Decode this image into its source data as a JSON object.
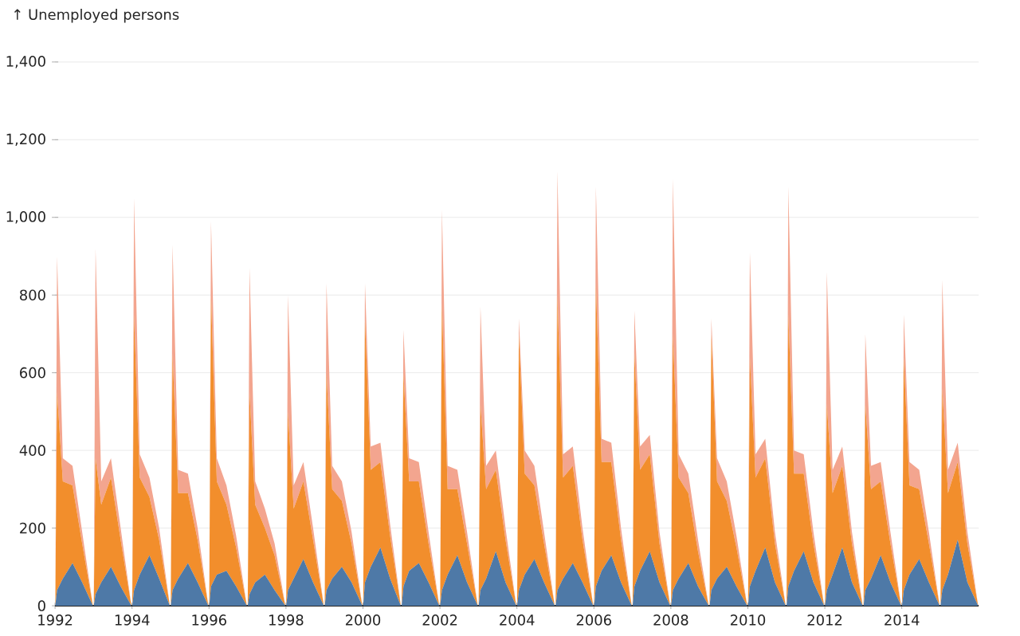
{
  "chart_data": {
    "type": "area",
    "stacked": true,
    "ylabel": "↑ Unemployed persons",
    "x": [
      "1992-01-03",
      "1992-01-20",
      "1992-03-15",
      "1992-06-15",
      "1992-09-15",
      "1992-12-26",
      "1993-01-03",
      "1993-01-20",
      "1993-03-15",
      "1993-06-15",
      "1993-09-15",
      "1993-12-26",
      "1994-01-03",
      "1994-01-20",
      "1994-03-15",
      "1994-06-15",
      "1994-09-15",
      "1994-12-26",
      "1995-01-03",
      "1995-01-20",
      "1995-03-15",
      "1995-06-15",
      "1995-09-15",
      "1995-12-26",
      "1996-01-03",
      "1996-01-20",
      "1996-03-15",
      "1996-06-15",
      "1996-09-15",
      "1996-12-26",
      "1997-01-03",
      "1997-01-20",
      "1997-03-15",
      "1997-06-15",
      "1997-09-15",
      "1997-12-26",
      "1998-01-03",
      "1998-01-20",
      "1998-03-15",
      "1998-06-15",
      "1998-09-15",
      "1998-12-26",
      "1999-01-03",
      "1999-01-20",
      "1999-03-15",
      "1999-06-15",
      "1999-09-15",
      "1999-12-26",
      "2000-01-03",
      "2000-01-20",
      "2000-03-15",
      "2000-06-15",
      "2000-09-15",
      "2000-12-26",
      "2001-01-03",
      "2001-01-20",
      "2001-03-15",
      "2001-06-15",
      "2001-09-15",
      "2001-12-26",
      "2002-01-03",
      "2002-01-20",
      "2002-03-15",
      "2002-06-15",
      "2002-09-15",
      "2002-12-26",
      "2003-01-03",
      "2003-01-20",
      "2003-03-15",
      "2003-06-15",
      "2003-09-15",
      "2003-12-26",
      "2004-01-03",
      "2004-01-20",
      "2004-03-15",
      "2004-06-15",
      "2004-09-15",
      "2004-12-26",
      "2005-01-03",
      "2005-01-20",
      "2005-03-15",
      "2005-06-15",
      "2005-09-15",
      "2005-12-26",
      "2006-01-03",
      "2006-01-20",
      "2006-03-15",
      "2006-06-15",
      "2006-09-15",
      "2006-12-26",
      "2007-01-03",
      "2007-01-20",
      "2007-03-15",
      "2007-06-15",
      "2007-09-15",
      "2007-12-26",
      "2008-01-03",
      "2008-01-20",
      "2008-03-15",
      "2008-06-15",
      "2008-09-15",
      "2008-12-26",
      "2009-01-03",
      "2009-01-20",
      "2009-03-15",
      "2009-06-15",
      "2009-09-15",
      "2009-12-26",
      "2010-01-03",
      "2010-01-20",
      "2010-03-15",
      "2010-06-15",
      "2010-09-15",
      "2010-12-26",
      "2011-01-03",
      "2011-01-20",
      "2011-03-15",
      "2011-06-15",
      "2011-09-15",
      "2011-12-26",
      "2012-01-03",
      "2012-01-20",
      "2012-03-15",
      "2012-06-15",
      "2012-09-15",
      "2012-12-26",
      "2013-01-03",
      "2013-01-20",
      "2013-03-15",
      "2013-06-15",
      "2013-09-15",
      "2013-12-26",
      "2014-01-03",
      "2014-01-20",
      "2014-03-15",
      "2014-06-15",
      "2014-09-15",
      "2014-12-26",
      "2015-01-03",
      "2015-01-20",
      "2015-03-15",
      "2015-06-15",
      "2015-09-15",
      "2015-12-26"
    ],
    "series": [
      {
        "color": "#4e79a7",
        "values": [
          0,
          40,
          70,
          110,
          60,
          0,
          0,
          30,
          60,
          100,
          50,
          0,
          0,
          40,
          80,
          130,
          70,
          0,
          0,
          40,
          70,
          110,
          60,
          0,
          0,
          50,
          80,
          90,
          50,
          0,
          0,
          30,
          60,
          80,
          40,
          0,
          0,
          40,
          70,
          120,
          60,
          0,
          0,
          40,
          70,
          100,
          60,
          0,
          0,
          60,
          100,
          150,
          70,
          0,
          0,
          50,
          90,
          110,
          60,
          0,
          0,
          40,
          80,
          130,
          60,
          0,
          0,
          40,
          70,
          140,
          60,
          0,
          0,
          40,
          80,
          120,
          60,
          0,
          0,
          40,
          70,
          110,
          60,
          0,
          0,
          50,
          90,
          130,
          60,
          0,
          0,
          50,
          90,
          140,
          60,
          0,
          0,
          40,
          70,
          110,
          50,
          0,
          0,
          40,
          70,
          100,
          50,
          0,
          0,
          50,
          90,
          150,
          60,
          0,
          0,
          50,
          90,
          140,
          60,
          0,
          0,
          40,
          80,
          150,
          60,
          0,
          0,
          40,
          70,
          130,
          60,
          0,
          0,
          40,
          80,
          120,
          60,
          0,
          0,
          40,
          80,
          170,
          60,
          0
        ]
      },
      {
        "color": "#f28e2c",
        "values": [
          0,
          510,
          250,
          200,
          100,
          0,
          0,
          350,
          200,
          230,
          120,
          0,
          0,
          710,
          250,
          150,
          100,
          0,
          0,
          610,
          220,
          180,
          110,
          0,
          0,
          750,
          240,
          170,
          100,
          0,
          0,
          520,
          200,
          120,
          90,
          0,
          0,
          460,
          180,
          200,
          110,
          0,
          0,
          560,
          230,
          170,
          100,
          0,
          0,
          680,
          250,
          220,
          110,
          0,
          0,
          550,
          230,
          210,
          100,
          0,
          0,
          740,
          220,
          170,
          100,
          0,
          0,
          480,
          230,
          210,
          110,
          0,
          0,
          660,
          260,
          190,
          100,
          0,
          0,
          760,
          260,
          250,
          110,
          0,
          0,
          780,
          280,
          240,
          110,
          0,
          0,
          600,
          260,
          250,
          100,
          0,
          0,
          660,
          260,
          180,
          90,
          0,
          0,
          660,
          250,
          170,
          100,
          0,
          0,
          590,
          240,
          230,
          100,
          0,
          0,
          700,
          250,
          200,
          100,
          0,
          0,
          480,
          210,
          210,
          100,
          0,
          0,
          480,
          230,
          190,
          100,
          0,
          0,
          600,
          230,
          180,
          100,
          0,
          0,
          520,
          210,
          200,
          100,
          0
        ]
      },
      {
        "color": "#f3a58f",
        "values": [
          0,
          350,
          60,
          50,
          30,
          0,
          0,
          540,
          60,
          50,
          30,
          0,
          0,
          300,
          60,
          50,
          30,
          0,
          0,
          280,
          60,
          50,
          30,
          0,
          0,
          190,
          60,
          50,
          30,
          0,
          0,
          320,
          60,
          50,
          30,
          0,
          0,
          300,
          60,
          50,
          30,
          0,
          0,
          230,
          60,
          50,
          30,
          0,
          0,
          90,
          60,
          50,
          30,
          0,
          0,
          110,
          60,
          50,
          30,
          0,
          0,
          240,
          60,
          50,
          30,
          0,
          0,
          250,
          60,
          50,
          30,
          0,
          0,
          40,
          60,
          50,
          30,
          0,
          0,
          320,
          60,
          50,
          30,
          0,
          0,
          250,
          60,
          50,
          30,
          0,
          0,
          110,
          60,
          50,
          30,
          0,
          0,
          400,
          60,
          50,
          30,
          0,
          0,
          40,
          60,
          50,
          30,
          0,
          0,
          270,
          60,
          50,
          30,
          0,
          0,
          330,
          60,
          50,
          30,
          0,
          0,
          340,
          60,
          50,
          30,
          0,
          0,
          180,
          60,
          50,
          30,
          0,
          0,
          110,
          60,
          50,
          30,
          0,
          0,
          280,
          60,
          50,
          30,
          0
        ]
      }
    ],
    "xlim": [
      "1992-01-01",
      "2015-12-31"
    ],
    "xticks": [
      "1992",
      "1994",
      "1996",
      "1998",
      "2000",
      "2002",
      "2004",
      "2006",
      "2008",
      "2010",
      "2012",
      "2014"
    ],
    "ylim": [
      0,
      1400
    ],
    "yticks": [
      0,
      200,
      400,
      {
        "value": 600,
        "label": "600"
      },
      800,
      {
        "value": 1000,
        "label": "1,000"
      },
      {
        "value": 1200,
        "label": "1,200"
      },
      {
        "value": 1400,
        "label": "1,400"
      }
    ],
    "grid": "y"
  }
}
